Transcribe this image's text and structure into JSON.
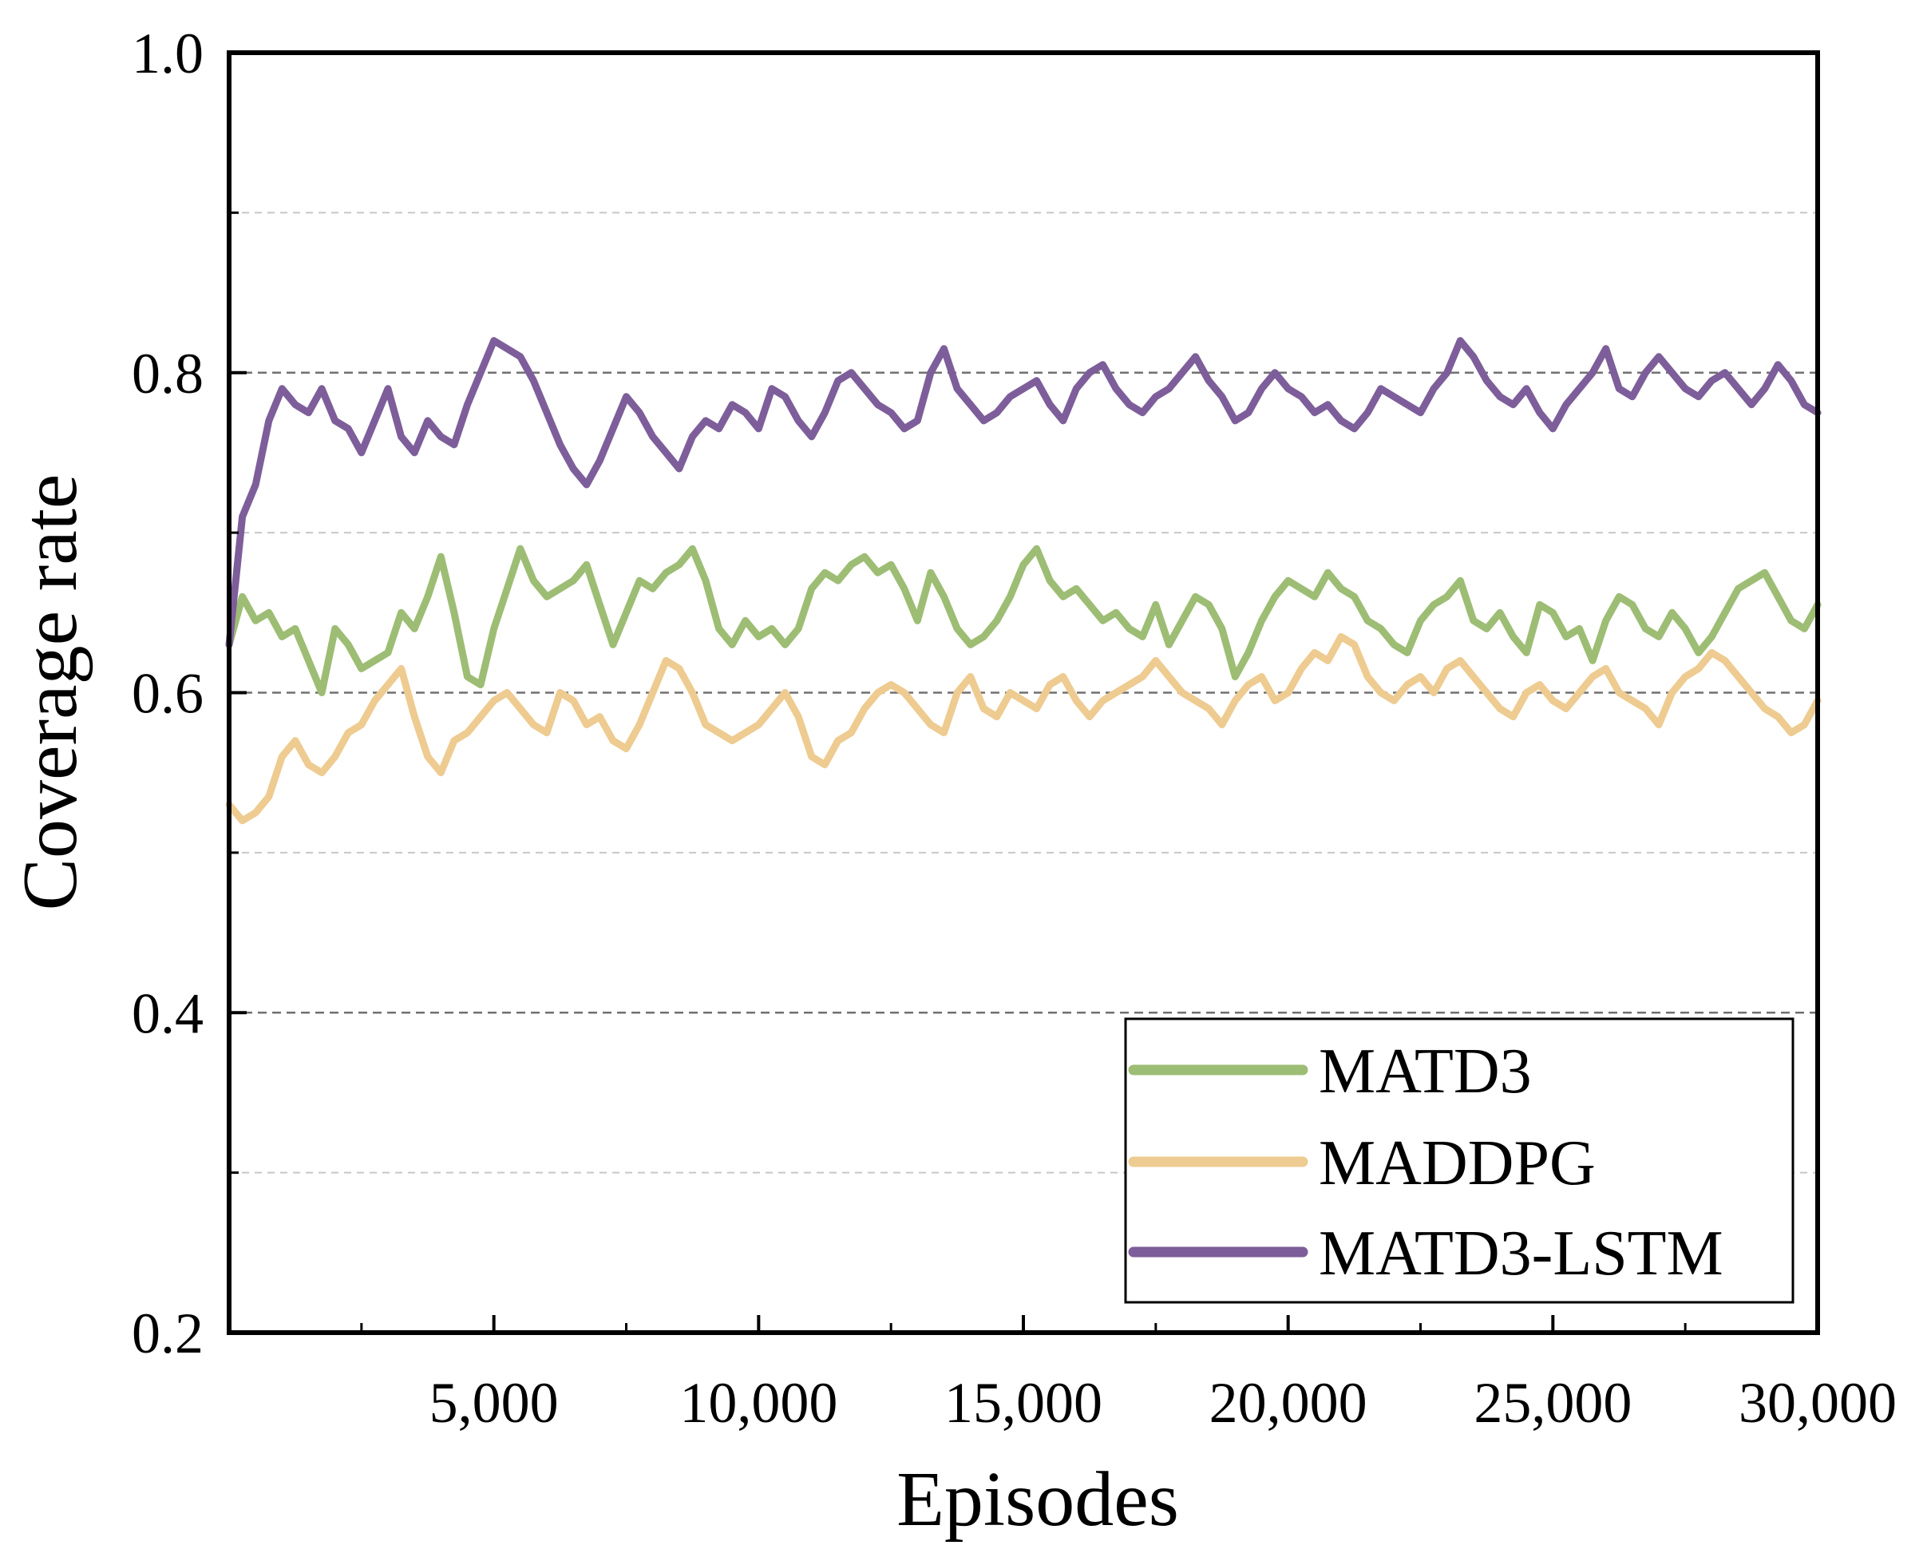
{
  "chart_data": {
    "type": "line",
    "title": "",
    "xlabel": "Episodes",
    "ylabel": "Coverage rate",
    "xlim": [
      0,
      30000
    ],
    "ylim": [
      0.2,
      1.0
    ],
    "xticks": [
      5000,
      10000,
      15000,
      20000,
      25000,
      30000
    ],
    "xtick_labels": [
      "5,000",
      "10,000",
      "15,000",
      "20,000",
      "25,000",
      "30,000"
    ],
    "xminor_ticks": [
      2500,
      7500,
      12500,
      17500,
      22500,
      27500
    ],
    "yticks": [
      0.2,
      0.4,
      0.6,
      0.8,
      1.0
    ],
    "ytick_labels": [
      "0.2",
      "0.4",
      "0.6",
      "0.8",
      "1.0"
    ],
    "ygrid_major": [
      0.4,
      0.6,
      0.8
    ],
    "ygrid_minor": [
      0.3,
      0.5,
      0.7,
      0.9
    ],
    "grid": "dashed horizontal",
    "legend_position": "bottom-right",
    "x": [
      0,
      250,
      500,
      750,
      1000,
      1250,
      1500,
      1750,
      2000,
      2250,
      2500,
      2750,
      3000,
      3250,
      3500,
      3750,
      4000,
      4250,
      4500,
      4750,
      5000,
      5250,
      5500,
      5750,
      6000,
      6250,
      6500,
      6750,
      7000,
      7250,
      7500,
      7750,
      8000,
      8250,
      8500,
      8750,
      9000,
      9250,
      9500,
      9750,
      10000,
      10250,
      10500,
      10750,
      11000,
      11250,
      11500,
      11750,
      12000,
      12250,
      12500,
      12750,
      13000,
      13250,
      13500,
      13750,
      14000,
      14250,
      14500,
      14750,
      15000,
      15250,
      15500,
      15750,
      16000,
      16250,
      16500,
      16750,
      17000,
      17250,
      17500,
      17750,
      18000,
      18250,
      18500,
      18750,
      19000,
      19250,
      19500,
      19750,
      20000,
      20250,
      20500,
      20750,
      21000,
      21250,
      21500,
      21750,
      22000,
      22250,
      22500,
      22750,
      23000,
      23250,
      23500,
      23750,
      24000,
      24250,
      24500,
      24750,
      25000,
      25250,
      25500,
      25750,
      26000,
      26250,
      26500,
      26750,
      27000,
      27250,
      27500,
      27750,
      28000,
      28250,
      28500,
      28750,
      29000,
      29250,
      29500,
      29750,
      30000
    ],
    "series": [
      {
        "name": "MATD3",
        "color": "#9dbd74",
        "values": [
          0.63,
          0.66,
          0.645,
          0.65,
          0.635,
          0.64,
          0.62,
          0.6,
          0.64,
          0.63,
          0.615,
          0.62,
          0.625,
          0.65,
          0.64,
          0.66,
          0.685,
          0.65,
          0.61,
          0.605,
          0.64,
          0.665,
          0.69,
          0.67,
          0.66,
          0.665,
          0.67,
          0.68,
          0.655,
          0.63,
          0.65,
          0.67,
          0.665,
          0.675,
          0.68,
          0.69,
          0.67,
          0.64,
          0.63,
          0.645,
          0.635,
          0.64,
          0.63,
          0.64,
          0.665,
          0.675,
          0.67,
          0.68,
          0.685,
          0.675,
          0.68,
          0.665,
          0.645,
          0.675,
          0.66,
          0.64,
          0.63,
          0.635,
          0.645,
          0.66,
          0.68,
          0.69,
          0.67,
          0.66,
          0.665,
          0.655,
          0.645,
          0.65,
          0.64,
          0.635,
          0.655,
          0.63,
          0.645,
          0.66,
          0.655,
          0.64,
          0.61,
          0.625,
          0.645,
          0.66,
          0.67,
          0.665,
          0.66,
          0.675,
          0.665,
          0.66,
          0.645,
          0.64,
          0.63,
          0.625,
          0.645,
          0.655,
          0.66,
          0.67,
          0.645,
          0.64,
          0.65,
          0.635,
          0.625,
          0.655,
          0.65,
          0.635,
          0.64,
          0.62,
          0.645,
          0.66,
          0.655,
          0.64,
          0.635,
          0.65,
          0.64,
          0.625,
          0.635,
          0.65,
          0.665,
          0.67,
          0.675,
          0.66,
          0.645,
          0.64,
          0.655
        ]
      },
      {
        "name": "MADDPG",
        "color": "#eecb90",
        "values": [
          0.53,
          0.52,
          0.525,
          0.535,
          0.56,
          0.57,
          0.555,
          0.55,
          0.56,
          0.575,
          0.58,
          0.595,
          0.605,
          0.615,
          0.585,
          0.56,
          0.55,
          0.57,
          0.575,
          0.585,
          0.595,
          0.6,
          0.59,
          0.58,
          0.575,
          0.6,
          0.595,
          0.58,
          0.585,
          0.57,
          0.565,
          0.58,
          0.6,
          0.62,
          0.615,
          0.6,
          0.58,
          0.575,
          0.57,
          0.575,
          0.58,
          0.59,
          0.6,
          0.585,
          0.56,
          0.555,
          0.57,
          0.575,
          0.59,
          0.6,
          0.605,
          0.6,
          0.59,
          0.58,
          0.575,
          0.6,
          0.61,
          0.59,
          0.585,
          0.6,
          0.595,
          0.59,
          0.605,
          0.61,
          0.595,
          0.585,
          0.595,
          0.6,
          0.605,
          0.61,
          0.62,
          0.61,
          0.6,
          0.595,
          0.59,
          0.58,
          0.595,
          0.605,
          0.61,
          0.595,
          0.6,
          0.615,
          0.625,
          0.62,
          0.635,
          0.63,
          0.61,
          0.6,
          0.595,
          0.605,
          0.61,
          0.6,
          0.615,
          0.62,
          0.61,
          0.6,
          0.59,
          0.585,
          0.6,
          0.605,
          0.595,
          0.59,
          0.6,
          0.61,
          0.615,
          0.6,
          0.595,
          0.59,
          0.58,
          0.6,
          0.61,
          0.615,
          0.625,
          0.62,
          0.61,
          0.6,
          0.59,
          0.585,
          0.575,
          0.58,
          0.595
        ]
      },
      {
        "name": "MATD3-LSTM",
        "color": "#7d5e9a",
        "values": [
          0.63,
          0.71,
          0.73,
          0.77,
          0.79,
          0.78,
          0.775,
          0.79,
          0.77,
          0.765,
          0.75,
          0.77,
          0.79,
          0.76,
          0.75,
          0.77,
          0.76,
          0.755,
          0.78,
          0.8,
          0.82,
          0.815,
          0.81,
          0.795,
          0.775,
          0.755,
          0.74,
          0.73,
          0.745,
          0.765,
          0.785,
          0.775,
          0.76,
          0.75,
          0.74,
          0.76,
          0.77,
          0.765,
          0.78,
          0.775,
          0.765,
          0.79,
          0.785,
          0.77,
          0.76,
          0.775,
          0.795,
          0.8,
          0.79,
          0.78,
          0.775,
          0.765,
          0.77,
          0.8,
          0.815,
          0.79,
          0.78,
          0.77,
          0.775,
          0.785,
          0.79,
          0.795,
          0.78,
          0.77,
          0.79,
          0.8,
          0.805,
          0.79,
          0.78,
          0.775,
          0.785,
          0.79,
          0.8,
          0.81,
          0.795,
          0.785,
          0.77,
          0.775,
          0.79,
          0.8,
          0.79,
          0.785,
          0.775,
          0.78,
          0.77,
          0.765,
          0.775,
          0.79,
          0.785,
          0.78,
          0.775,
          0.79,
          0.8,
          0.82,
          0.81,
          0.795,
          0.785,
          0.78,
          0.79,
          0.775,
          0.765,
          0.78,
          0.79,
          0.8,
          0.815,
          0.79,
          0.785,
          0.8,
          0.81,
          0.8,
          0.79,
          0.785,
          0.795,
          0.8,
          0.79,
          0.78,
          0.79,
          0.805,
          0.795,
          0.78,
          0.775
        ]
      }
    ]
  }
}
